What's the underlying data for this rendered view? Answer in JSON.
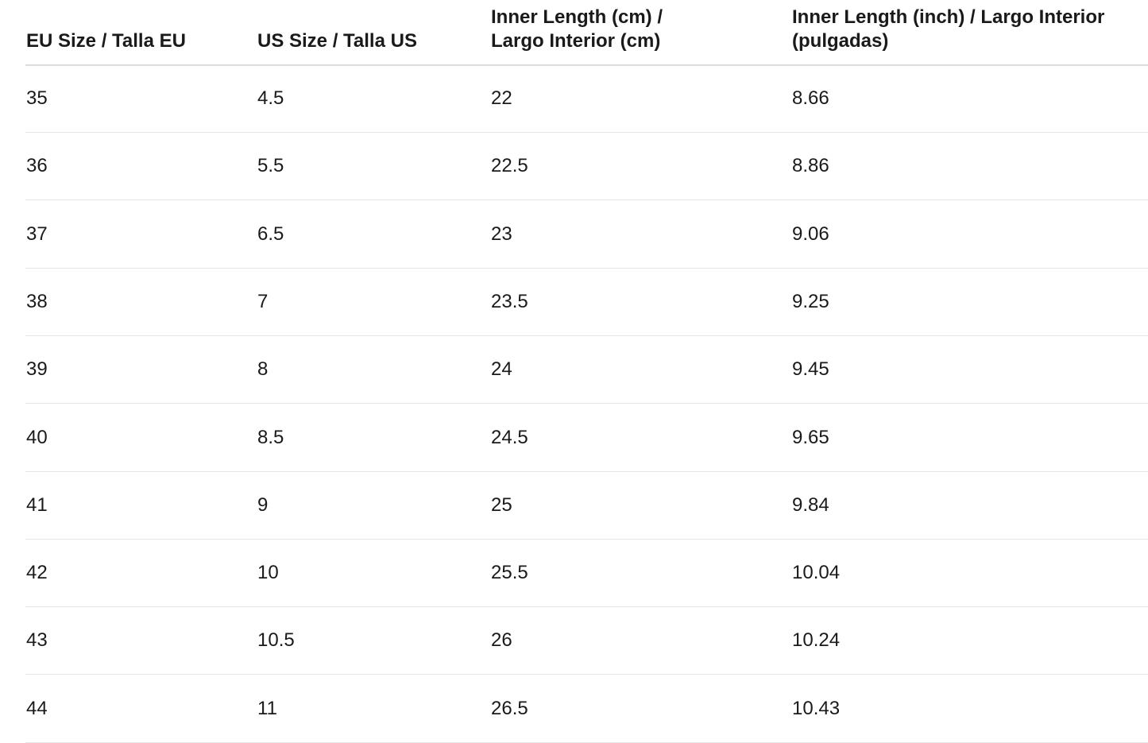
{
  "table": {
    "headers": [
      "EU Size / Talla EU",
      "US Size / Talla US",
      "Inner Length (cm) / Largo Interior (cm)",
      "Inner Length (inch) / Largo Interior (pulgadas)"
    ],
    "rows": [
      [
        "35",
        "4.5",
        "22",
        "8.66"
      ],
      [
        "36",
        "5.5",
        "22.5",
        "8.86"
      ],
      [
        "37",
        "6.5",
        "23",
        "9.06"
      ],
      [
        "38",
        "7",
        "23.5",
        "9.25"
      ],
      [
        "39",
        "8",
        "24",
        "9.45"
      ],
      [
        "40",
        "8.5",
        "24.5",
        "9.65"
      ],
      [
        "41",
        "9",
        "25",
        "9.84"
      ],
      [
        "42",
        "10",
        "25.5",
        "10.04"
      ],
      [
        "43",
        "10.5",
        "26",
        "10.24"
      ],
      [
        "44",
        "11",
        "26.5",
        "10.43"
      ]
    ]
  }
}
